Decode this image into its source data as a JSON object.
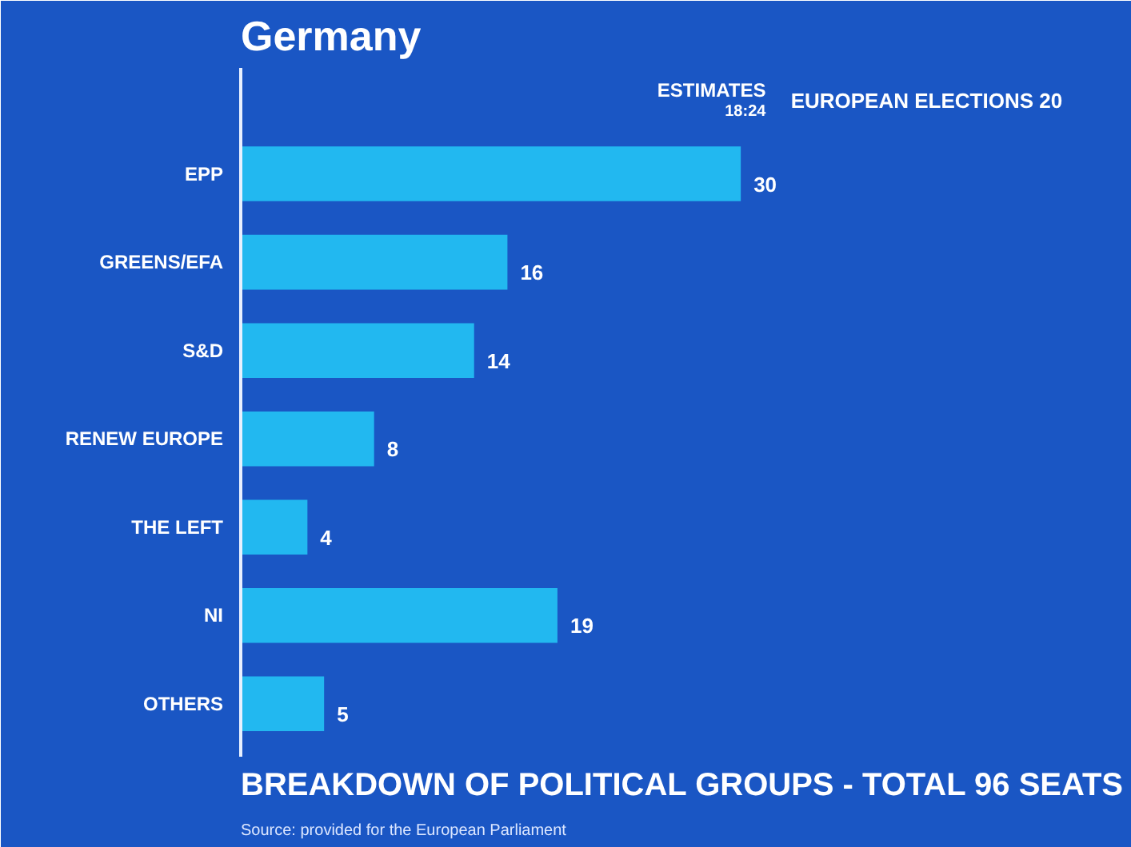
{
  "chart_data": {
    "type": "bar",
    "orientation": "horizontal",
    "title": "Germany",
    "subtitle": "BREAKDOWN OF POLITICAL GROUPS - TOTAL 96 SEATS",
    "categories": [
      "EPP",
      "GREENS/EFA",
      "S&D",
      "RENEW EUROPE",
      "THE LEFT",
      "NI",
      "OTHERS"
    ],
    "values": [
      30,
      16,
      14,
      8,
      4,
      19,
      5
    ],
    "color": "#22b8f0",
    "data_labels": true,
    "grid": false,
    "annotations": [
      "ESTIMATES",
      "18:24",
      "EUROPEAN ELECTIONS 20",
      "Source: provided for the European Parliament"
    ]
  }
}
